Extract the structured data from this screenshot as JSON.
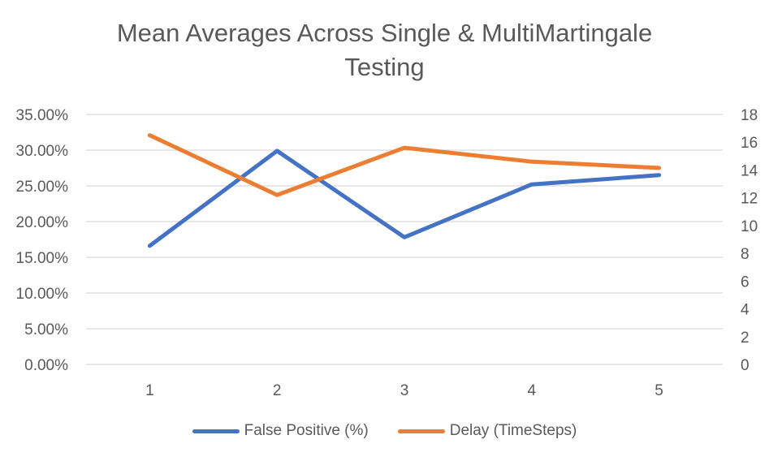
{
  "chart_data": {
    "type": "line",
    "title_lines": [
      "Mean Averages Across Single & MultiMartingale",
      "Testing"
    ],
    "x": [
      1,
      2,
      3,
      4,
      5
    ],
    "x_tick_labels": [
      "1",
      "2",
      "3",
      "4",
      "5"
    ],
    "y_left": {
      "ylim": [
        0,
        0.35
      ],
      "ticks": [
        0,
        0.05,
        0.1,
        0.15,
        0.2,
        0.25,
        0.3,
        0.35
      ],
      "tick_labels": [
        "0.00%",
        "5.00%",
        "10.00%",
        "15.00%",
        "20.00%",
        "25.00%",
        "30.00%",
        "35.00%"
      ]
    },
    "y_right": {
      "ylim": [
        0,
        18
      ],
      "ticks": [
        0,
        2,
        4,
        6,
        8,
        10,
        12,
        14,
        16,
        18
      ],
      "tick_labels": [
        "0",
        "2",
        "4",
        "6",
        "8",
        "10",
        "12",
        "14",
        "16",
        "18"
      ]
    },
    "series": [
      {
        "name": "False Positive (%)",
        "axis": "left",
        "color": "#4472C4",
        "values": [
          0.166,
          0.299,
          0.178,
          0.252,
          0.265
        ]
      },
      {
        "name": "Delay (TimeSteps)",
        "axis": "right",
        "color": "#ED7D31",
        "values": [
          16.5,
          12.2,
          15.6,
          14.6,
          14.15
        ]
      }
    ],
    "grid": true,
    "legend_position": "bottom"
  }
}
